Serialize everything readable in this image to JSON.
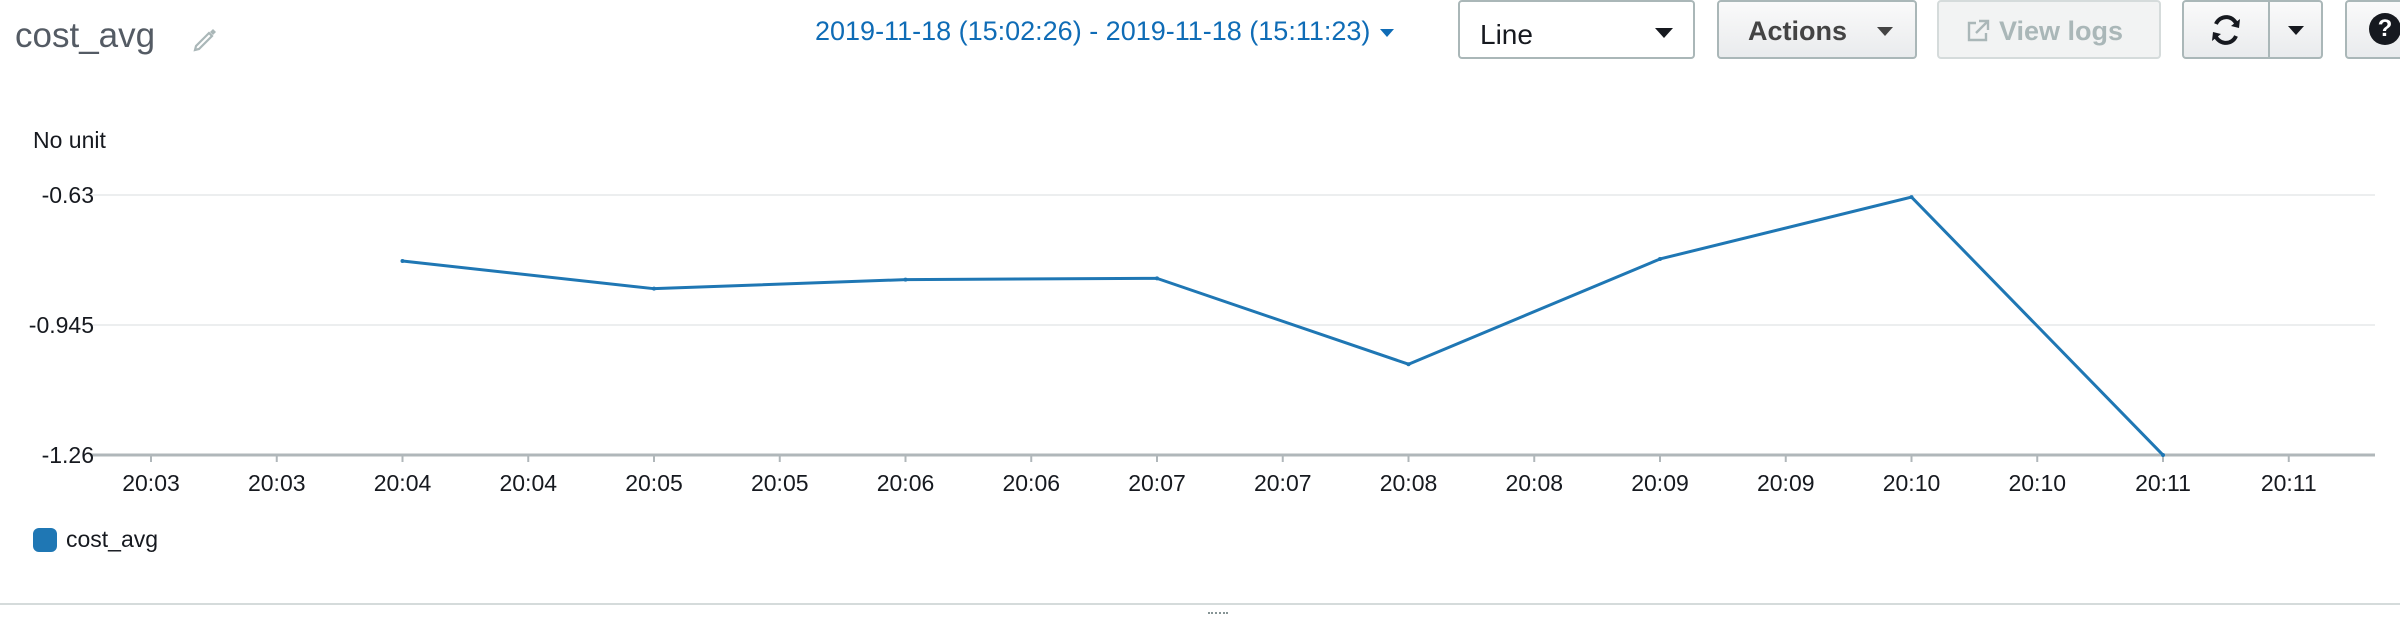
{
  "header": {
    "title": "cost_avg",
    "time_range": "2019-11-18 (15:02:26) - 2019-11-18 (15:11:23)",
    "view_select": "Line",
    "actions_label": "Actions",
    "view_logs_label": "View logs"
  },
  "icons": {
    "edit": "pencil-icon",
    "external": "external-link-icon",
    "refresh": "refresh-icon",
    "help": "help-icon"
  },
  "colors": {
    "series": "#1f77b4",
    "link": "#0f6cb6"
  },
  "chart_data": {
    "type": "line",
    "unit_label": "No unit",
    "y_ticks": [
      "-0.63",
      "-0.945",
      "-1.26"
    ],
    "ylim": [
      -1.26,
      -0.63
    ],
    "x_tick_labels": [
      "20:03",
      "20:03",
      "20:04",
      "20:04",
      "20:05",
      "20:05",
      "20:06",
      "20:06",
      "20:07",
      "20:07",
      "20:08",
      "20:08",
      "20:09",
      "20:09",
      "20:10",
      "20:10",
      "20:11",
      "20:11"
    ],
    "series": [
      {
        "name": "cost_avg",
        "x": [
          "20:04",
          "20:05",
          "20:06",
          "20:07",
          "20:08",
          "20:09",
          "20:10",
          "20:11"
        ],
        "values": [
          -0.79,
          -0.857,
          -0.835,
          -0.832,
          -1.04,
          -0.785,
          -0.635,
          -1.26
        ]
      }
    ],
    "grid": true,
    "legend_position": "bottom-left"
  }
}
